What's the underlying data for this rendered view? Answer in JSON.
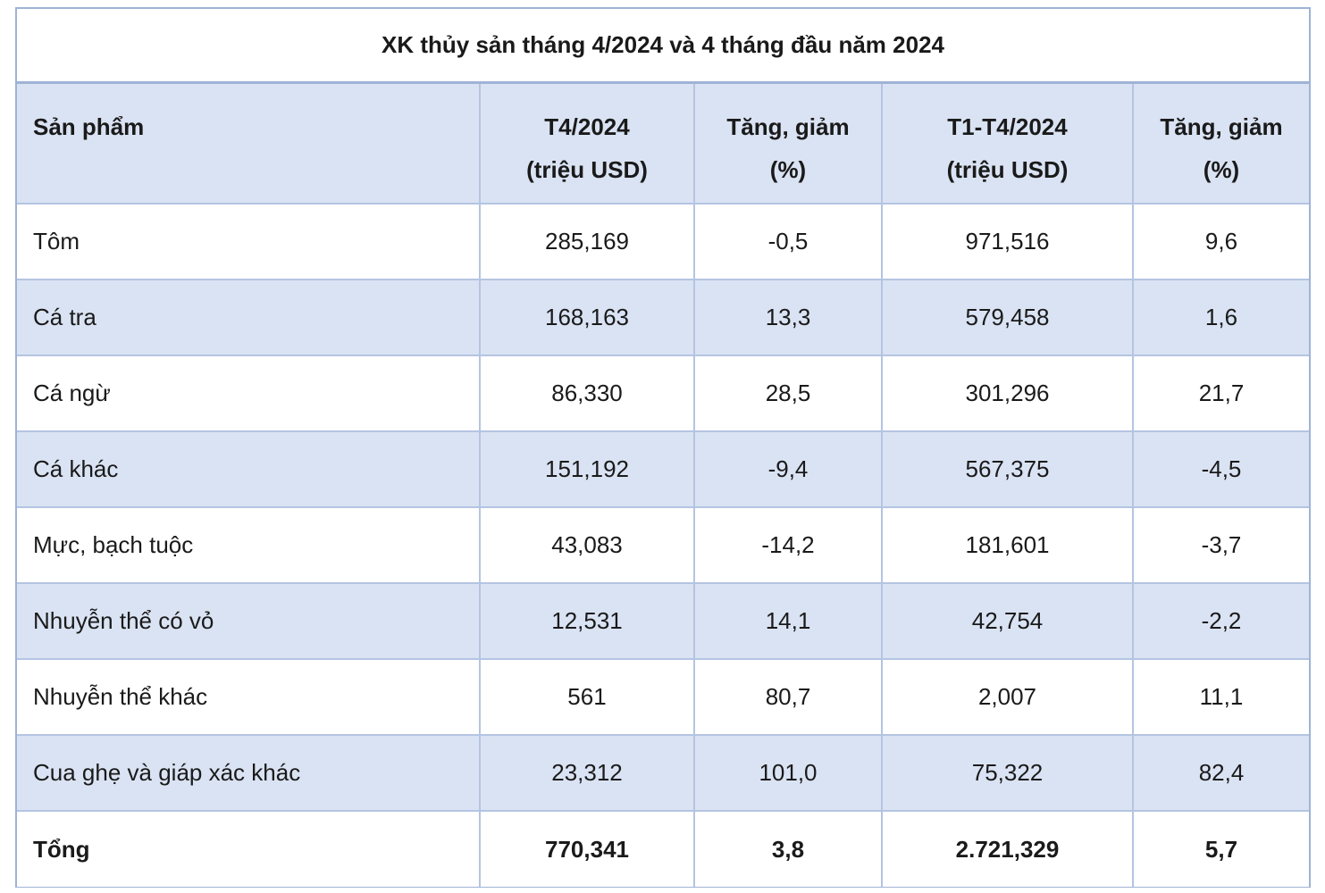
{
  "title": "XK thủy sản tháng 4/2024 và 4 tháng đầu năm 2024",
  "header": {
    "product": "Sản phẩm",
    "t4_line1": "T4/2024",
    "t4_line2": "(triệu USD)",
    "chg1_line1": "Tăng, giảm",
    "chg1_line2": "(%)",
    "ytd_line1": "T1-T4/2024",
    "ytd_line2": "(triệu USD)",
    "chg2_line1": "Tăng, giảm",
    "chg2_line2": "(%)"
  },
  "rows": [
    {
      "product": "Tôm",
      "t4": "285,169",
      "chg1": "-0,5",
      "ytd": "971,516",
      "chg2": "9,6"
    },
    {
      "product": "Cá tra",
      "t4": "168,163",
      "chg1": "13,3",
      "ytd": "579,458",
      "chg2": "1,6"
    },
    {
      "product": "Cá ngừ",
      "t4": "86,330",
      "chg1": "28,5",
      "ytd": "301,296",
      "chg2": "21,7"
    },
    {
      "product": "Cá khác",
      "t4": "151,192",
      "chg1": "-9,4",
      "ytd": "567,375",
      "chg2": "-4,5"
    },
    {
      "product": "Mực, bạch tuộc",
      "t4": "43,083",
      "chg1": "-14,2",
      "ytd": "181,601",
      "chg2": "-3,7"
    },
    {
      "product": "Nhuyễn thể có vỏ",
      "t4": "12,531",
      "chg1": "14,1",
      "ytd": "42,754",
      "chg2": "-2,2"
    },
    {
      "product": "Nhuyễn thể khác",
      "t4": "561",
      "chg1": "80,7",
      "ytd": "2,007",
      "chg2": "11,1"
    },
    {
      "product": "Cua ghẹ và giáp xác khác",
      "t4": "23,312",
      "chg1": "101,0",
      "ytd": "75,322",
      "chg2": "82,4"
    }
  ],
  "total": {
    "product": "Tổng",
    "t4": "770,341",
    "chg1": "3,8",
    "ytd": "2.721,329",
    "chg2": "5,7"
  }
}
